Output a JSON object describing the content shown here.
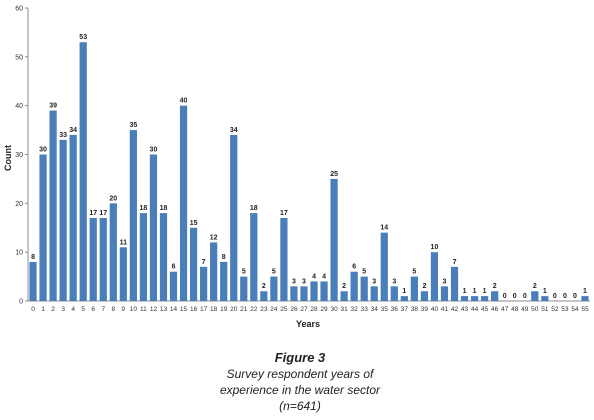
{
  "chart_data": {
    "type": "bar",
    "xlabel": "Years",
    "ylabel": "Count",
    "ylim": [
      0,
      60
    ],
    "yticks": [
      0,
      10,
      20,
      30,
      40,
      50,
      60
    ],
    "grid": false,
    "bar_color": "#4a7ebb",
    "categories": [
      "0",
      "1",
      "2",
      "3",
      "4",
      "5",
      "6",
      "7",
      "8",
      "9",
      "10",
      "11",
      "12",
      "13",
      "14",
      "15",
      "16",
      "17",
      "18",
      "19",
      "20",
      "21",
      "22",
      "23",
      "24",
      "25",
      "26",
      "27",
      "28",
      "29",
      "30",
      "31",
      "32",
      "33",
      "34",
      "35",
      "36",
      "37",
      "38",
      "39",
      "40",
      "41",
      "42",
      "43",
      "44",
      "45",
      "46",
      "47",
      "48",
      "49",
      "50",
      "51",
      "52",
      "53",
      "54",
      "55"
    ],
    "values": [
      8,
      30,
      39,
      33,
      34,
      53,
      17,
      17,
      20,
      11,
      35,
      18,
      30,
      18,
      6,
      40,
      15,
      7,
      12,
      8,
      34,
      5,
      18,
      2,
      5,
      17,
      3,
      3,
      4,
      4,
      25,
      2,
      6,
      5,
      3,
      14,
      3,
      1,
      5,
      2,
      10,
      3,
      7,
      1,
      1,
      1,
      2,
      0,
      0,
      0,
      2,
      1,
      0,
      0,
      0,
      1
    ]
  },
  "caption": {
    "figure_label": "Figure 3",
    "line1": "Survey respondent years of",
    "line2": "experience in the water sector",
    "line3": "(n=641)"
  }
}
